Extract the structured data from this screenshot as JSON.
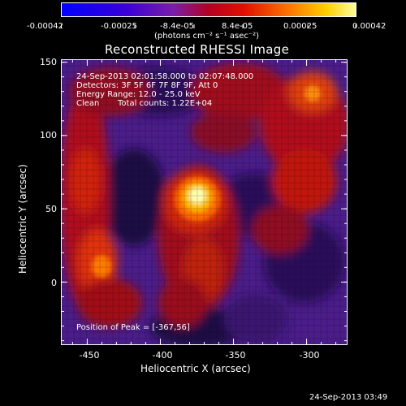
{
  "colorbar": {
    "tick_labels": [
      "-0.00042",
      "-0.00025",
      "-8.4e-05",
      "8.4e-05",
      "0.00025",
      "0.00042"
    ],
    "units": "(photons cm⁻² s⁻¹ asec⁻²)"
  },
  "plot": {
    "title": "Reconstructed RHESSI Image",
    "xlabel": "Heliocentric X (arcsec)",
    "ylabel": "Heliocentric Y (arcsec)",
    "xticks": [
      "-450",
      "-400",
      "-350",
      "-300"
    ],
    "yticks": [
      "150",
      "100",
      "50",
      "0"
    ],
    "info": {
      "time_range": "24-Sep-2013 02:01:58.000 to 02:07:48.000",
      "detectors": "Detectors: 3F 5F 6F 7F 8F 9F, Att 0",
      "energy": "Energy Range: 12.0 - 25.0 keV",
      "method": "Clean",
      "counts": "Total counts: 1.22E+04"
    },
    "peak": "Position of Peak = [-367,56]"
  },
  "footer": {
    "timestamp": "24-Sep-2013 03:49"
  },
  "colors": {
    "background": "#000000",
    "text": "#ffffff"
  }
}
